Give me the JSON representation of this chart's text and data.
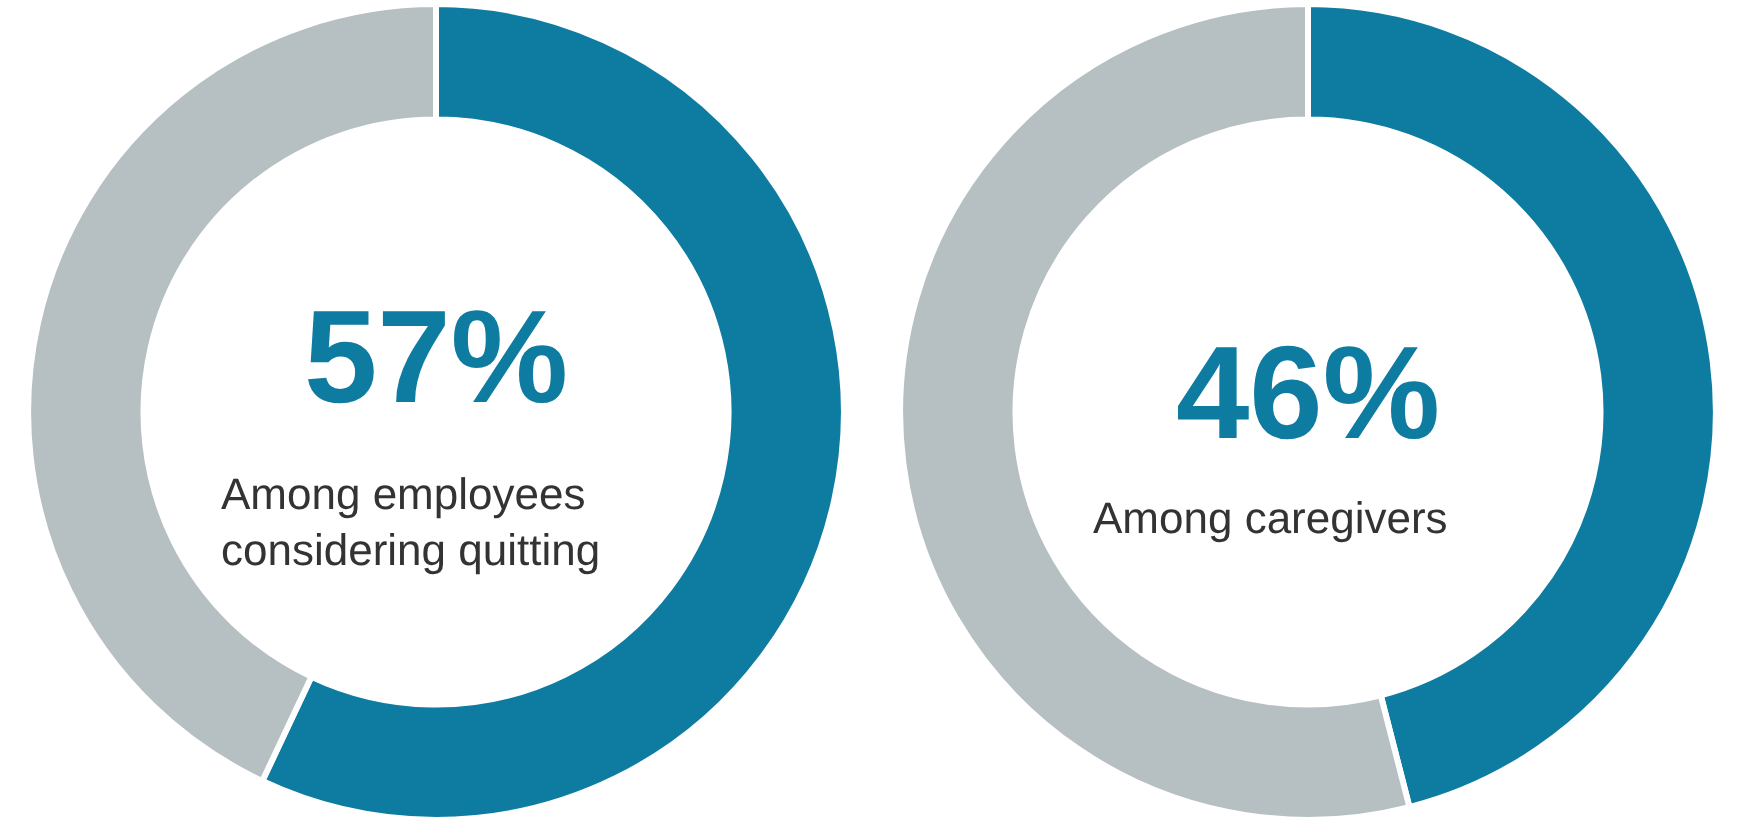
{
  "chart_data": [
    {
      "type": "donut",
      "title": "Among employees considering quitting",
      "categories": [
        null,
        null
      ],
      "values": [
        57,
        43
      ],
      "colors": [
        "#0e7ca1",
        "#b6bfc2"
      ],
      "value_labels": [
        "57%",
        null
      ]
    },
    {
      "type": "donut",
      "title": "Among caregivers",
      "categories": [
        null,
        null
      ],
      "values": [
        46,
        54
      ],
      "colors": [
        "#0e7ca1",
        "#b6bfc2"
      ],
      "value_labels": [
        "46%",
        null
      ]
    }
  ]
}
